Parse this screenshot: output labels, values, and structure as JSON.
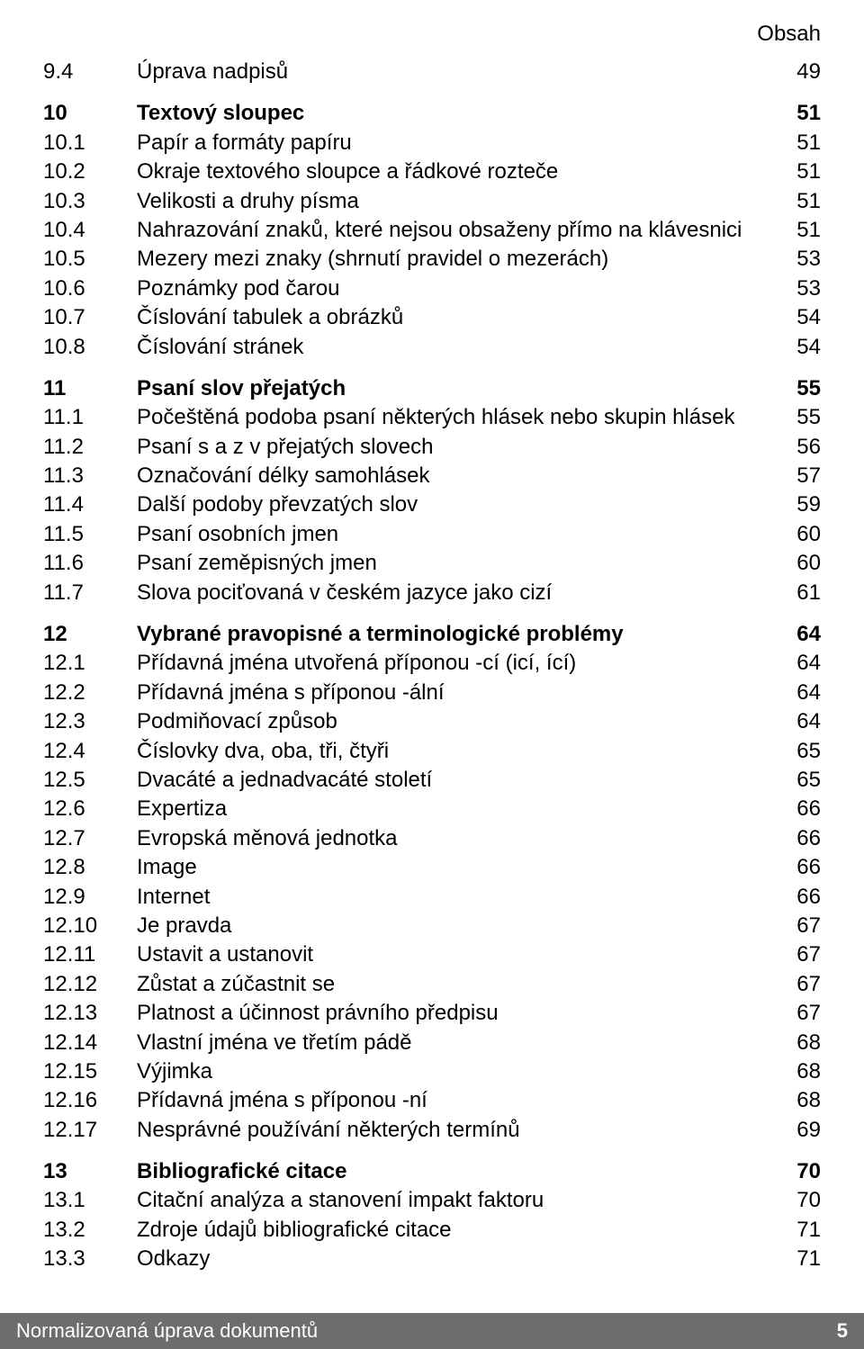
{
  "header": {
    "section_title": "Obsah"
  },
  "footer": {
    "book_title": "Normalizovaná úprava dokumentů",
    "page_number": "5"
  },
  "toc": {
    "groups": [
      {
        "rows": [
          {
            "num": "9.4",
            "title": "Úprava nadpisů",
            "page": "49",
            "bold": false
          }
        ]
      },
      {
        "rows": [
          {
            "num": "10",
            "title": "Textový sloupec",
            "page": "51",
            "bold": true
          },
          {
            "num": "10.1",
            "title": "Papír a formáty papíru",
            "page": "51",
            "bold": false
          },
          {
            "num": "10.2",
            "title": "Okraje textového sloupce a řádkové rozteče",
            "page": "51",
            "bold": false
          },
          {
            "num": "10.3",
            "title": "Velikosti a druhy písma",
            "page": "51",
            "bold": false
          },
          {
            "num": "10.4",
            "title": "Nahrazování znaků, které nejsou obsaženy přímo na klávesnici",
            "page": "51",
            "bold": false
          },
          {
            "num": "10.5",
            "title": "Mezery mezi znaky (shrnutí pravidel o mezerách)",
            "page": "53",
            "bold": false
          },
          {
            "num": "10.6",
            "title": "Poznámky pod čarou",
            "page": "53",
            "bold": false
          },
          {
            "num": "10.7",
            "title": "Číslování tabulek a obrázků",
            "page": "54",
            "bold": false
          },
          {
            "num": "10.8",
            "title": "Číslování stránek",
            "page": "54",
            "bold": false
          }
        ]
      },
      {
        "rows": [
          {
            "num": "11",
            "title": "Psaní slov přejatých",
            "page": "55",
            "bold": true
          },
          {
            "num": "11.1",
            "title": "Počeštěná podoba psaní některých hlásek nebo skupin hlásek",
            "page": "55",
            "bold": false
          },
          {
            "num": "11.2",
            "title": "Psaní s a z v přejatých slovech",
            "page": "56",
            "bold": false
          },
          {
            "num": "11.3",
            "title": "Označování délky samohlásek",
            "page": "57",
            "bold": false
          },
          {
            "num": "11.4",
            "title": "Další podoby převzatých slov",
            "page": "59",
            "bold": false
          },
          {
            "num": "11.5",
            "title": "Psaní osobních jmen",
            "page": "60",
            "bold": false
          },
          {
            "num": "11.6",
            "title": "Psaní zeměpisných jmen",
            "page": "60",
            "bold": false
          },
          {
            "num": "11.7",
            "title": "Slova pociťovaná v českém jazyce jako cizí",
            "page": "61",
            "bold": false
          }
        ]
      },
      {
        "rows": [
          {
            "num": "12",
            "title": "Vybrané pravopisné a terminologické problémy",
            "page": "64",
            "bold": true
          },
          {
            "num": "12.1",
            "title": "Přídavná jména utvořená příponou -cí (icí, ící)",
            "page": "64",
            "bold": false
          },
          {
            "num": "12.2",
            "title": "Přídavná jména s příponou -ální",
            "page": "64",
            "bold": false
          },
          {
            "num": "12.3",
            "title": "Podmiňovací způsob",
            "page": "64",
            "bold": false
          },
          {
            "num": "12.4",
            "title": "Číslovky dva, oba, tři, čtyři",
            "page": "65",
            "bold": false
          },
          {
            "num": "12.5",
            "title": "Dvacáté a jednadvacáté století",
            "page": "65",
            "bold": false
          },
          {
            "num": "12.6",
            "title": "Expertiza",
            "page": "66",
            "bold": false
          },
          {
            "num": "12.7",
            "title": "Evropská měnová jednotka",
            "page": "66",
            "bold": false
          },
          {
            "num": "12.8",
            "title": "Image",
            "page": "66",
            "bold": false
          },
          {
            "num": "12.9",
            "title": "Internet",
            "page": "66",
            "bold": false
          },
          {
            "num": "12.10",
            "title": "Je pravda",
            "page": "67",
            "bold": false
          },
          {
            "num": "12.11",
            "title": "Ustavit a ustanovit",
            "page": "67",
            "bold": false
          },
          {
            "num": "12.12",
            "title": "Zůstat a zúčastnit se",
            "page": "67",
            "bold": false
          },
          {
            "num": "12.13",
            "title": "Platnost a účinnost právního předpisu",
            "page": "67",
            "bold": false
          },
          {
            "num": "12.14",
            "title": "Vlastní jména ve třetím pádě",
            "page": "68",
            "bold": false
          },
          {
            "num": "12.15",
            "title": "Výjimka",
            "page": "68",
            "bold": false
          },
          {
            "num": "12.16",
            "title": "Přídavná jména s příponou -ní",
            "page": "68",
            "bold": false
          },
          {
            "num": "12.17",
            "title": "Nesprávné používání některých termínů",
            "page": "69",
            "bold": false
          }
        ]
      },
      {
        "rows": [
          {
            "num": "13",
            "title": "Bibliografické citace",
            "page": "70",
            "bold": true
          },
          {
            "num": "13.1",
            "title": "Citační analýza a stanovení impakt faktoru",
            "page": "70",
            "bold": false
          },
          {
            "num": "13.2",
            "title": "Zdroje údajů bibliografické citace",
            "page": "71",
            "bold": false
          },
          {
            "num": "13.3",
            "title": "Odkazy",
            "page": "71",
            "bold": false
          }
        ]
      }
    ]
  }
}
